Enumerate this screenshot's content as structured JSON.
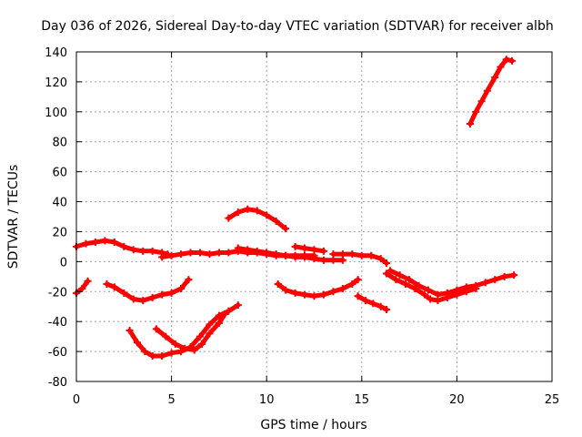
{
  "chart_data": {
    "type": "scatter",
    "title": "Day 036 of 2026, Sidereal Day-to-day VTEC variation (SDTVAR) for receiver albh",
    "xlabel": "GPS time / hours",
    "ylabel": "SDTVAR / TECUs",
    "xlim": [
      0,
      25
    ],
    "ylim": [
      -80,
      140
    ],
    "xticks": [
      0,
      5,
      10,
      15,
      20,
      25
    ],
    "yticks": [
      -80,
      -60,
      -40,
      -20,
      0,
      20,
      40,
      60,
      80,
      100,
      120,
      140
    ],
    "grid": true,
    "marker": "plus",
    "color": "#ff0000",
    "series": [
      {
        "name": "track-1",
        "points": [
          [
            0.0,
            10
          ],
          [
            0.5,
            12
          ],
          [
            1.0,
            13
          ],
          [
            1.5,
            14
          ],
          [
            2.0,
            13
          ],
          [
            2.5,
            10
          ],
          [
            3.0,
            8
          ],
          [
            3.5,
            7
          ],
          [
            4.0,
            7
          ],
          [
            4.5,
            6
          ],
          [
            4.8,
            5
          ]
        ]
      },
      {
        "name": "track-2",
        "points": [
          [
            4.5,
            3
          ],
          [
            5.0,
            4
          ],
          [
            5.5,
            5
          ],
          [
            6.0,
            6
          ],
          [
            6.5,
            6
          ],
          [
            7.0,
            5
          ],
          [
            7.5,
            6
          ],
          [
            8.0,
            6
          ],
          [
            8.5,
            7
          ],
          [
            9.0,
            6
          ],
          [
            9.5,
            6
          ],
          [
            10.0,
            5
          ],
          [
            10.5,
            4
          ],
          [
            11.0,
            4
          ],
          [
            11.5,
            3
          ],
          [
            12.0,
            3
          ],
          [
            12.5,
            2
          ],
          [
            13.0,
            1
          ],
          [
            13.5,
            1
          ],
          [
            14.0,
            1
          ]
        ]
      },
      {
        "name": "track-3",
        "points": [
          [
            8.5,
            9
          ],
          [
            9.0,
            8
          ],
          [
            9.5,
            7
          ],
          [
            10.0,
            6
          ],
          [
            10.5,
            5
          ],
          [
            11.0,
            4
          ],
          [
            11.5,
            4
          ],
          [
            12.0,
            4
          ],
          [
            12.5,
            4
          ]
        ]
      },
      {
        "name": "track-4",
        "points": [
          [
            11.5,
            10
          ],
          [
            12.0,
            9
          ],
          [
            12.5,
            8
          ],
          [
            13.0,
            7
          ]
        ]
      },
      {
        "name": "track-5",
        "points": [
          [
            13.5,
            5
          ],
          [
            14.0,
            5
          ],
          [
            14.5,
            5
          ],
          [
            15.0,
            4
          ],
          [
            15.5,
            4
          ],
          [
            16.0,
            2
          ],
          [
            16.3,
            -1
          ]
        ]
      },
      {
        "name": "track-6",
        "points": [
          [
            8.0,
            29
          ],
          [
            8.5,
            33
          ],
          [
            9.0,
            35
          ],
          [
            9.5,
            34
          ],
          [
            10.0,
            31
          ],
          [
            10.5,
            27
          ],
          [
            11.0,
            22
          ]
        ]
      },
      {
        "name": "track-7",
        "points": [
          [
            0.0,
            -21
          ],
          [
            0.3,
            -18
          ],
          [
            0.6,
            -13
          ]
        ]
      },
      {
        "name": "track-8",
        "points": [
          [
            1.6,
            -15
          ],
          [
            2.0,
            -17
          ],
          [
            2.5,
            -21
          ],
          [
            3.0,
            -25
          ],
          [
            3.5,
            -26
          ],
          [
            4.0,
            -24
          ],
          [
            4.5,
            -22
          ],
          [
            5.0,
            -21
          ],
          [
            5.5,
            -18
          ],
          [
            5.9,
            -12
          ]
        ]
      },
      {
        "name": "track-9",
        "points": [
          [
            2.8,
            -46
          ],
          [
            3.2,
            -54
          ],
          [
            3.6,
            -60
          ],
          [
            4.0,
            -63
          ],
          [
            4.5,
            -63
          ],
          [
            5.0,
            -61
          ],
          [
            5.5,
            -60
          ],
          [
            6.0,
            -57
          ],
          [
            6.5,
            -50
          ],
          [
            7.0,
            -42
          ],
          [
            7.5,
            -36
          ],
          [
            8.0,
            -33
          ],
          [
            8.5,
            -29
          ]
        ]
      },
      {
        "name": "track-10",
        "points": [
          [
            4.2,
            -45
          ],
          [
            4.7,
            -50
          ],
          [
            5.2,
            -55
          ],
          [
            5.7,
            -58
          ],
          [
            6.2,
            -59
          ],
          [
            6.6,
            -55
          ],
          [
            7.0,
            -48
          ],
          [
            7.5,
            -41
          ],
          [
            7.8,
            -35
          ]
        ]
      },
      {
        "name": "track-11",
        "points": [
          [
            10.6,
            -15
          ],
          [
            11.0,
            -19
          ],
          [
            11.5,
            -21
          ],
          [
            12.0,
            -22
          ],
          [
            12.5,
            -23
          ],
          [
            13.0,
            -22
          ],
          [
            13.5,
            -20
          ],
          [
            14.0,
            -18
          ],
          [
            14.5,
            -15
          ],
          [
            14.8,
            -12
          ]
        ]
      },
      {
        "name": "track-12",
        "points": [
          [
            14.8,
            -23
          ],
          [
            15.2,
            -26
          ],
          [
            15.6,
            -28
          ],
          [
            16.0,
            -30
          ],
          [
            16.3,
            -32
          ]
        ]
      },
      {
        "name": "track-13",
        "points": [
          [
            16.5,
            -6
          ],
          [
            17.0,
            -9
          ],
          [
            17.5,
            -12
          ],
          [
            18.0,
            -16
          ],
          [
            18.5,
            -19
          ],
          [
            19.0,
            -22
          ],
          [
            19.5,
            -21
          ],
          [
            20.0,
            -19
          ],
          [
            20.5,
            -17
          ],
          [
            21.0,
            -16
          ],
          [
            21.5,
            -14
          ],
          [
            22.0,
            -12
          ],
          [
            22.5,
            -10
          ],
          [
            23.0,
            -9
          ]
        ]
      },
      {
        "name": "track-14",
        "points": [
          [
            16.3,
            -8
          ],
          [
            16.8,
            -12
          ],
          [
            17.3,
            -15
          ],
          [
            17.8,
            -18
          ],
          [
            18.3,
            -22
          ],
          [
            18.6,
            -25
          ],
          [
            19.0,
            -26
          ],
          [
            19.5,
            -24
          ],
          [
            20.0,
            -22
          ],
          [
            20.5,
            -20
          ],
          [
            21.0,
            -18
          ]
        ]
      },
      {
        "name": "track-15",
        "points": [
          [
            20.7,
            92
          ],
          [
            21.0,
            100
          ],
          [
            21.3,
            107
          ],
          [
            21.6,
            114
          ],
          [
            22.0,
            123
          ],
          [
            22.3,
            130
          ],
          [
            22.6,
            135
          ],
          [
            22.9,
            134
          ]
        ]
      }
    ]
  }
}
